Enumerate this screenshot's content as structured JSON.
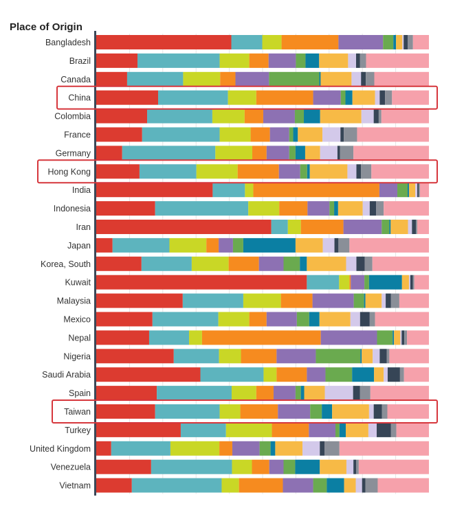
{
  "chart_data": {
    "type": "bar",
    "orientation": "horizontal",
    "stacked": true,
    "normalized": true,
    "title": "Place of Origin",
    "xlim": [
      0,
      1
    ],
    "legend": "none",
    "highlighted": [
      "China",
      "Hong Kong",
      "Taiwan"
    ],
    "palette": [
      "#DC3B30",
      "#5DB4BE",
      "#C9D726",
      "#F68B1F",
      "#8D71B3",
      "#6AAA4F",
      "#0B7FA3",
      "#F7BA46",
      "#D3C9EA",
      "#364556",
      "#8A8F98",
      "#F6A1AB"
    ],
    "categories": [
      "Bangladesh",
      "Brazil",
      "Canada",
      "China",
      "Colombia",
      "France",
      "Germany",
      "Hong Kong",
      "India",
      "Indonesia",
      "Iran",
      "Japan",
      "Korea, South",
      "Kuwait",
      "Malaysia",
      "Mexico",
      "Nepal",
      "Nigeria",
      "Saudi Arabia",
      "Spain",
      "Taiwan",
      "Turkey",
      "United Kingdom",
      "Venezuela",
      "Vietnam"
    ],
    "segments": [
      [
        0.406,
        0.093,
        0.058,
        0.171,
        0.134,
        0.031,
        0.008,
        0.019,
        0.004,
        0.012,
        0.016,
        0.048
      ],
      [
        0.124,
        0.247,
        0.089,
        0.058,
        0.082,
        0.029,
        0.041,
        0.087,
        0.024,
        0.012,
        0.018,
        0.189
      ],
      [
        0.091,
        0.165,
        0.109,
        0.045,
        0.099,
        0.148,
        0.004,
        0.091,
        0.028,
        0.014,
        0.025,
        0.161
      ],
      [
        0.186,
        0.21,
        0.085,
        0.171,
        0.083,
        0.014,
        0.021,
        0.068,
        0.014,
        0.016,
        0.021,
        0.111
      ],
      [
        0.153,
        0.196,
        0.097,
        0.056,
        0.095,
        0.027,
        0.049,
        0.124,
        0.037,
        0.015,
        0.008,
        0.143
      ],
      [
        0.138,
        0.233,
        0.093,
        0.058,
        0.058,
        0.012,
        0.014,
        0.074,
        0.054,
        0.01,
        0.04,
        0.216
      ],
      [
        0.078,
        0.28,
        0.111,
        0.043,
        0.068,
        0.019,
        0.029,
        0.045,
        0.052,
        0.008,
        0.04,
        0.227
      ],
      [
        0.13,
        0.171,
        0.124,
        0.124,
        0.064,
        0.021,
        0.008,
        0.113,
        0.027,
        0.014,
        0.031,
        0.173
      ],
      [
        0.35,
        0.097,
        0.025,
        0.379,
        0.054,
        0.031,
        0.004,
        0.019,
        0.006,
        0.004,
        0.004,
        0.027
      ],
      [
        0.177,
        0.28,
        0.093,
        0.085,
        0.066,
        0.014,
        0.012,
        0.074,
        0.021,
        0.019,
        0.023,
        0.136
      ],
      [
        0.526,
        0.05,
        0.039,
        0.128,
        0.115,
        0.023,
        0.004,
        0.052,
        0.012,
        0.012,
        0.004,
        0.035
      ],
      [
        0.049,
        0.171,
        0.111,
        0.037,
        0.043,
        0.031,
        0.157,
        0.082,
        0.035,
        0.012,
        0.033,
        0.239
      ],
      [
        0.136,
        0.151,
        0.111,
        0.091,
        0.074,
        0.049,
        0.021,
        0.118,
        0.031,
        0.025,
        0.023,
        0.17
      ],
      [
        0.633,
        0.097,
        0.031,
        0.004,
        0.041,
        0.014,
        0.099,
        0.021,
        0.004,
        0.008,
        0.004,
        0.044
      ],
      [
        0.26,
        0.182,
        0.113,
        0.095,
        0.124,
        0.031,
        0.004,
        0.049,
        0.012,
        0.016,
        0.025,
        0.089
      ],
      [
        0.169,
        0.198,
        0.093,
        0.052,
        0.091,
        0.037,
        0.031,
        0.093,
        0.029,
        0.029,
        0.016,
        0.162
      ],
      [
        0.159,
        0.12,
        0.039,
        0.357,
        0.169,
        0.047,
        0.004,
        0.019,
        0.004,
        0.008,
        0.008,
        0.066
      ],
      [
        0.233,
        0.136,
        0.066,
        0.107,
        0.118,
        0.134,
        0.004,
        0.033,
        0.021,
        0.021,
        0.008,
        0.119
      ],
      [
        0.313,
        0.19,
        0.039,
        0.091,
        0.056,
        0.08,
        0.066,
        0.029,
        0.012,
        0.037,
        0.012,
        0.075
      ],
      [
        0.182,
        0.225,
        0.074,
        0.052,
        0.066,
        0.016,
        0.01,
        0.062,
        0.085,
        0.021,
        0.031,
        0.176
      ],
      [
        0.177,
        0.194,
        0.062,
        0.113,
        0.097,
        0.035,
        0.031,
        0.111,
        0.014,
        0.025,
        0.016,
        0.125
      ],
      [
        0.254,
        0.136,
        0.138,
        0.111,
        0.08,
        0.012,
        0.019,
        0.068,
        0.025,
        0.043,
        0.016,
        0.098
      ],
      [
        0.045,
        0.178,
        0.147,
        0.039,
        0.082,
        0.033,
        0.014,
        0.082,
        0.052,
        0.014,
        0.045,
        0.269
      ],
      [
        0.165,
        0.243,
        0.06,
        0.052,
        0.043,
        0.035,
        0.074,
        0.08,
        0.021,
        0.008,
        0.008,
        0.211
      ],
      [
        0.107,
        0.27,
        0.052,
        0.132,
        0.091,
        0.041,
        0.052,
        0.035,
        0.019,
        0.01,
        0.037,
        0.154
      ]
    ]
  }
}
